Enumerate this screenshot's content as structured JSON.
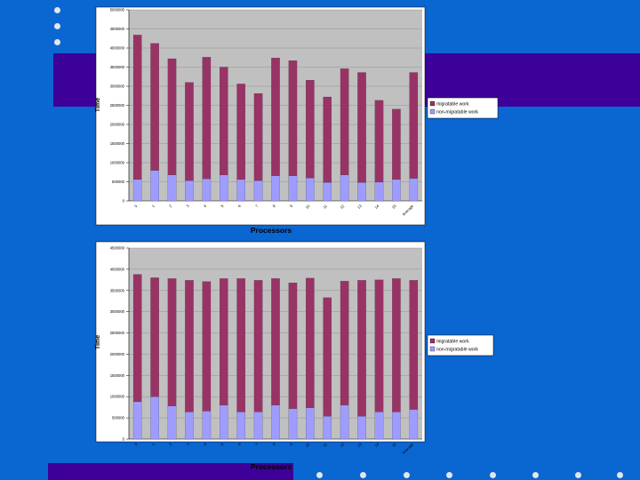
{
  "chart_data": [
    {
      "type": "bar",
      "stacked": true,
      "xlabel": "Processors",
      "ylabel": "Time",
      "categories": [
        "0",
        "1",
        "2",
        "3",
        "4",
        "5",
        "6",
        "7",
        "8",
        "9",
        "10",
        "11",
        "12",
        "13",
        "14",
        "15",
        "Average"
      ],
      "ylim": [
        0,
        5000000
      ],
      "yticks": [
        "0",
        "500000",
        "1000000",
        "1500000",
        "2000000",
        "2500000",
        "3000000",
        "3500000",
        "4000000",
        "4500000",
        "5000000"
      ],
      "series": [
        {
          "name": "non-migratable work",
          "color": "#9f9cff",
          "values": [
            560000,
            800000,
            680000,
            530000,
            580000,
            680000,
            560000,
            530000,
            660000,
            660000,
            600000,
            480000,
            680000,
            480000,
            490000,
            560000,
            590000
          ]
        },
        {
          "name": "migratable work",
          "color": "#993366",
          "values": [
            3780000,
            3320000,
            3040000,
            2570000,
            3180000,
            2820000,
            2500000,
            2280000,
            3080000,
            3010000,
            2560000,
            2240000,
            2780000,
            2880000,
            2140000,
            1840000,
            2770000
          ]
        }
      ],
      "legend": "right",
      "grid": true
    },
    {
      "type": "bar",
      "stacked": true,
      "xlabel": "Processors",
      "ylabel": "Time",
      "categories": [
        "0",
        "1",
        "2",
        "3",
        "4",
        "5",
        "6",
        "7",
        "8",
        "9",
        "10",
        "11",
        "12",
        "13",
        "14",
        "15",
        "Average"
      ],
      "ylim": [
        0,
        4500000
      ],
      "yticks": [
        "0",
        "500000",
        "1000000",
        "1500000",
        "2000000",
        "2500000",
        "3000000",
        "3500000",
        "4000000",
        "4500000"
      ],
      "series": [
        {
          "name": "non-migratable work",
          "color": "#9f9cff",
          "values": [
            880000,
            1000000,
            780000,
            640000,
            660000,
            800000,
            640000,
            640000,
            800000,
            720000,
            740000,
            540000,
            800000,
            540000,
            640000,
            640000,
            700000
          ]
        },
        {
          "name": "migratable work",
          "color": "#993366",
          "values": [
            3000000,
            2800000,
            3000000,
            3100000,
            3050000,
            2980000,
            3140000,
            3100000,
            2980000,
            2960000,
            3050000,
            2790000,
            2920000,
            3200000,
            3110000,
            3140000,
            3040000
          ]
        }
      ],
      "legend": "right",
      "grid": true
    }
  ]
}
